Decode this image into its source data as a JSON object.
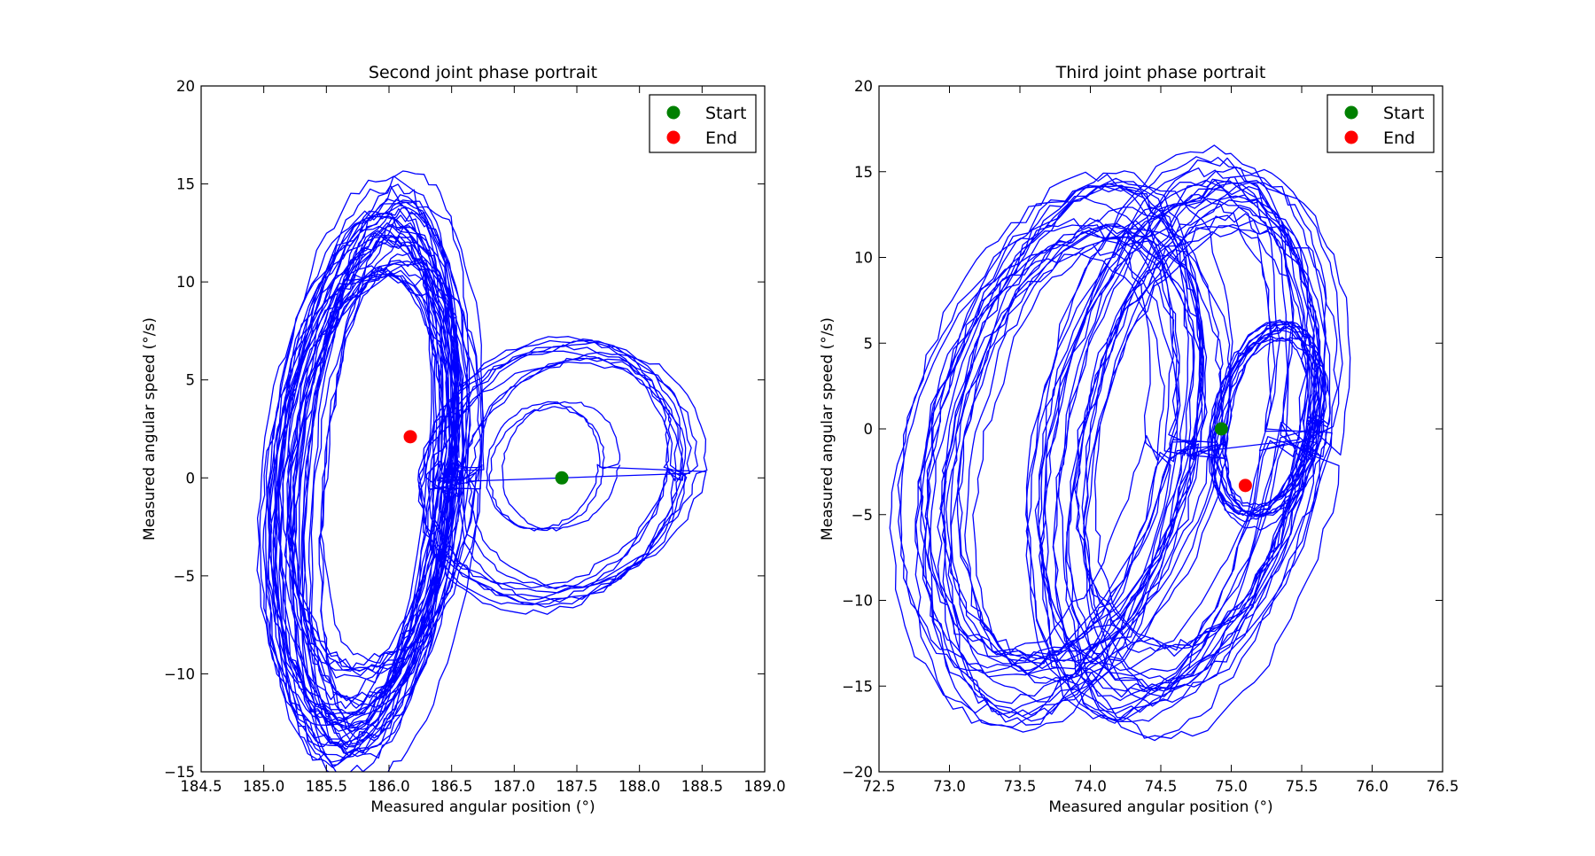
{
  "chart_data": [
    {
      "type": "line",
      "title": "Second joint phase portrait",
      "xlabel": "Measured angular position (°)",
      "ylabel": "Measured angular speed (°/s)",
      "xlim": [
        184.5,
        189.0
      ],
      "ylim": [
        -15,
        20
      ],
      "xticks": [
        "184.5",
        "185.0",
        "185.5",
        "186.0",
        "186.5",
        "187.0",
        "187.5",
        "188.0",
        "188.5",
        "189.0"
      ],
      "yticks": [
        "−15",
        "−10",
        "−5",
        "0",
        "5",
        "10",
        "15",
        "20"
      ],
      "legend": {
        "placement": "top-right",
        "entries": [
          {
            "label": "Start",
            "color": "#008000"
          },
          {
            "label": "End",
            "color": "#ff0000"
          }
        ]
      },
      "line_color": "#0000ff",
      "series": [
        {
          "loops": [
            {
              "cx": 185.85,
              "cy": 0.0,
              "ax": 0.62,
              "ay": 12.3,
              "tilt": 0.28,
              "n": 40,
              "spread": 0.22
            },
            {
              "cx": 187.45,
              "cy": 0.3,
              "ax": 0.95,
              "ay": 6.3,
              "tilt": 0.15,
              "n": 10,
              "spread": 0.08
            },
            {
              "cx": 187.3,
              "cy": 0.4,
              "ax": 0.45,
              "ay": 3.3,
              "tilt": 0.12,
              "n": 3,
              "spread": 0.06
            }
          ]
        }
      ],
      "start": {
        "x": 187.38,
        "y": 0.0
      },
      "end": {
        "x": 186.17,
        "y": 2.1
      }
    },
    {
      "type": "line",
      "title": "Third joint phase portrait",
      "xlabel": "Measured angular position (°)",
      "ylabel": "Measured angular speed (°/s)",
      "xlim": [
        72.5,
        76.5
      ],
      "ylim": [
        -20,
        20
      ],
      "xticks": [
        "72.5",
        "73.0",
        "73.5",
        "74.0",
        "74.5",
        "75.0",
        "75.5",
        "76.0",
        "76.5"
      ],
      "yticks": [
        "−20",
        "−15",
        "−10",
        "−5",
        "0",
        "5",
        "10",
        "15",
        "20"
      ],
      "legend": {
        "placement": "top-right",
        "entries": [
          {
            "label": "Start",
            "color": "#008000"
          },
          {
            "label": "End",
            "color": "#ff0000"
          }
        ]
      },
      "line_color": "#0000ff",
      "series": [
        {
          "loops": [
            {
              "cx": 73.8,
              "cy": -1.5,
              "ax": 0.85,
              "ay": 14.0,
              "tilt": 0.35,
              "n": 22,
              "spread": 0.15
            },
            {
              "cx": 74.65,
              "cy": -0.8,
              "ax": 0.85,
              "ay": 14.5,
              "tilt": 0.35,
              "n": 22,
              "spread": 0.15
            },
            {
              "cx": 75.25,
              "cy": 0.5,
              "ax": 0.35,
              "ay": 5.5,
              "tilt": 0.3,
              "n": 12,
              "spread": 0.1
            }
          ]
        }
      ],
      "start": {
        "x": 74.93,
        "y": 0.0
      },
      "end": {
        "x": 75.1,
        "y": -3.3
      }
    }
  ]
}
